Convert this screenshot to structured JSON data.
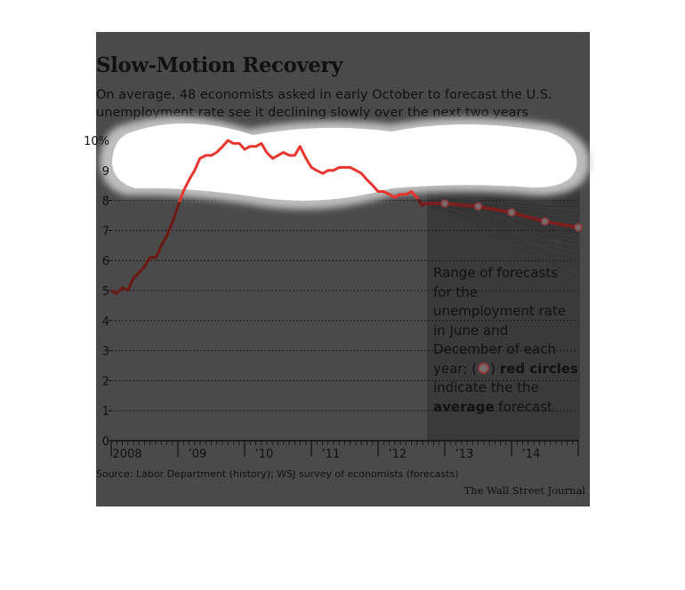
{
  "header": {
    "title": "Slow-Motion Recovery",
    "subtitle_line1": "On average, 48 economists asked in early October to forecast the U.S.",
    "subtitle_line2": "unemployment rate see it declining slowly over the next two years"
  },
  "note": {
    "text_start": "Range of forecasts for the unemployment rate in June and December of each year; (",
    "text_mid": ") ",
    "bold1": "red circles",
    "text_after1": " indicate the the ",
    "bold2": "average",
    "text_after2": " forecast"
  },
  "footer": {
    "source": "Source: Labor Department (history); WSJ survey of economists (forecasts)",
    "credit": "The Wall Street Journal"
  },
  "colors": {
    "history_line": "#e8352e",
    "average_line": "#7a1f1f",
    "forecast_lines": "#333333",
    "panel": "#4a4a4a",
    "circle_fill": "#7a6a6a",
    "circle_stroke": "#8a3a3a"
  },
  "chart_data": {
    "type": "line",
    "title": "Slow-Motion Recovery",
    "xlabel": "",
    "ylabel": "",
    "ylim": [
      0,
      10
    ],
    "xlim": [
      2008.0,
      2015.0
    ],
    "grid": true,
    "y_ticks": [
      "0",
      "1",
      "2",
      "3",
      "4",
      "5",
      "6",
      "7",
      "8",
      "9",
      "10%"
    ],
    "x_ticks": [
      {
        "x": 2008.0,
        "label": "2008"
      },
      {
        "x": 2009.0,
        "label": "’09"
      },
      {
        "x": 2010.0,
        "label": "’10"
      },
      {
        "x": 2011.0,
        "label": "’11"
      },
      {
        "x": 2012.0,
        "label": "’12"
      },
      {
        "x": 2013.0,
        "label": "’13"
      },
      {
        "x": 2014.0,
        "label": "’14"
      }
    ],
    "series": [
      {
        "kind": "history",
        "x": [
          2008.0,
          2008.08,
          2008.17,
          2008.25,
          2008.33,
          2008.42,
          2008.5,
          2008.58,
          2008.67,
          2008.75,
          2008.83,
          2008.92,
          2009.0,
          2009.08,
          2009.17,
          2009.25,
          2009.33,
          2009.42,
          2009.5,
          2009.58,
          2009.67,
          2009.75,
          2009.83,
          2009.92,
          2010.0,
          2010.08,
          2010.17,
          2010.25,
          2010.33,
          2010.42,
          2010.5,
          2010.58,
          2010.67,
          2010.75,
          2010.83,
          2010.92,
          2011.0,
          2011.08,
          2011.17,
          2011.25,
          2011.33,
          2011.42,
          2011.5,
          2011.58,
          2011.67,
          2011.75,
          2011.83,
          2011.92,
          2012.0,
          2012.08,
          2012.17,
          2012.25,
          2012.33,
          2012.42,
          2012.5,
          2012.58,
          2012.67
        ],
        "values": [
          5.0,
          4.9,
          5.1,
          5.0,
          5.4,
          5.6,
          5.8,
          6.1,
          6.1,
          6.5,
          6.8,
          7.3,
          7.8,
          8.3,
          8.7,
          9.0,
          9.4,
          9.5,
          9.5,
          9.6,
          9.8,
          10.0,
          9.9,
          9.9,
          9.7,
          9.8,
          9.8,
          9.9,
          9.6,
          9.4,
          9.5,
          9.6,
          9.5,
          9.5,
          9.8,
          9.4,
          9.1,
          9.0,
          8.9,
          9.0,
          9.0,
          9.1,
          9.1,
          9.1,
          9.0,
          8.9,
          8.7,
          8.5,
          8.3,
          8.3,
          8.2,
          8.1,
          8.2,
          8.2,
          8.3,
          8.1,
          7.8
        ]
      },
      {
        "kind": "average",
        "x": [
          2012.67,
          2013.0,
          2013.5,
          2014.0,
          2014.5,
          2015.0
        ],
        "values": [
          7.9,
          7.9,
          7.8,
          7.6,
          7.3,
          7.1
        ],
        "markers": [
          {
            "x": 2013.0,
            "y": 7.9
          },
          {
            "x": 2013.5,
            "y": 7.8
          },
          {
            "x": 2014.0,
            "y": 7.6
          },
          {
            "x": 2014.5,
            "y": 7.3
          },
          {
            "x": 2015.0,
            "y": 7.1
          }
        ]
      }
    ],
    "forecast_range": {
      "x": [
        2012.67,
        2013.0,
        2013.5,
        2014.0,
        2014.5,
        2015.0
      ],
      "paths": [
        [
          7.9,
          8.0,
          8.1,
          8.0,
          8.0,
          7.9
        ],
        [
          7.9,
          8.0,
          8.0,
          7.9,
          7.8,
          7.8
        ],
        [
          7.9,
          7.9,
          7.9,
          7.8,
          7.7,
          7.6
        ],
        [
          7.9,
          7.9,
          7.9,
          7.7,
          7.6,
          7.5
        ],
        [
          7.9,
          7.9,
          7.8,
          7.7,
          7.5,
          7.3
        ],
        [
          7.9,
          7.9,
          7.8,
          7.6,
          7.4,
          7.2
        ],
        [
          7.9,
          7.9,
          7.8,
          7.6,
          7.3,
          7.1
        ],
        [
          7.9,
          7.9,
          7.7,
          7.5,
          7.2,
          7.0
        ],
        [
          7.9,
          7.8,
          7.7,
          7.4,
          7.1,
          6.9
        ],
        [
          7.9,
          7.8,
          7.6,
          7.3,
          7.0,
          6.8
        ],
        [
          7.9,
          7.8,
          7.6,
          7.2,
          6.9,
          6.7
        ],
        [
          7.9,
          7.8,
          7.5,
          7.1,
          6.8,
          6.6
        ],
        [
          7.9,
          7.8,
          7.5,
          7.0,
          6.6,
          6.4
        ],
        [
          7.9,
          7.7,
          7.4,
          6.9,
          6.5,
          6.2
        ],
        [
          7.9,
          7.7,
          7.3,
          6.8,
          6.3,
          6.0
        ],
        [
          7.9,
          7.7,
          7.2,
          6.7,
          6.2,
          5.8
        ],
        [
          7.9,
          7.6,
          7.1,
          6.5,
          6.0,
          5.4
        ],
        [
          7.9,
          8.0,
          7.8,
          7.4,
          6.9,
          6.5
        ],
        [
          7.9,
          7.9,
          7.6,
          7.3,
          7.1,
          6.9
        ],
        [
          7.9,
          8.1,
          7.9,
          7.6,
          7.2,
          6.9
        ]
      ]
    }
  }
}
